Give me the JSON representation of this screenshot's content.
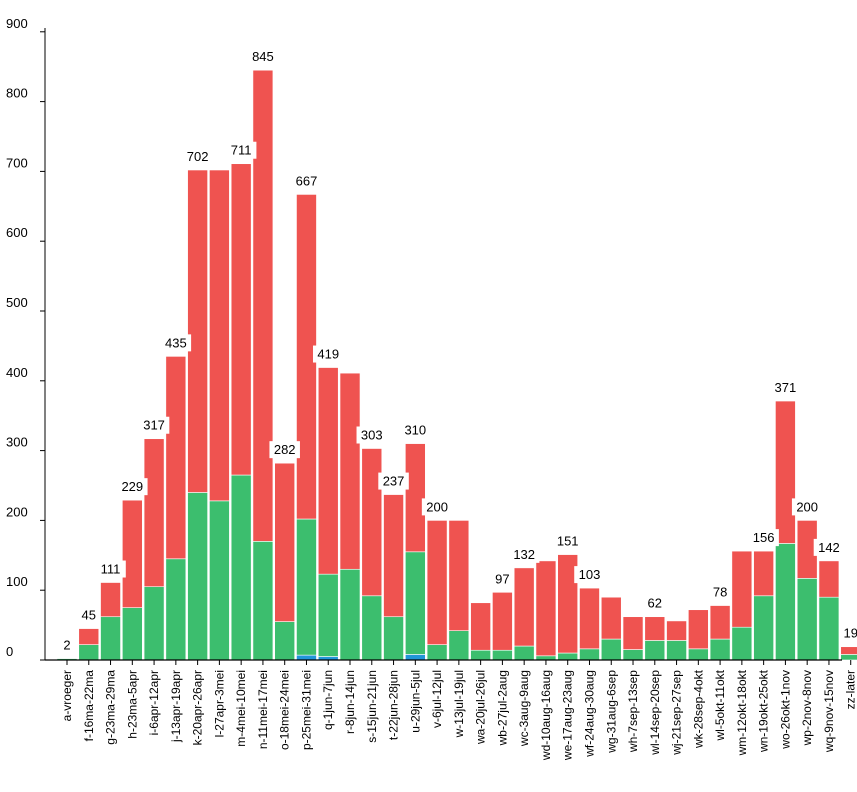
{
  "chart_data": {
    "type": "bar",
    "stacked": true,
    "title": "",
    "xlabel": "",
    "ylabel": "",
    "ylim": [
      0,
      920
    ],
    "yticks": [
      0,
      100,
      200,
      300,
      400,
      500,
      600,
      700,
      800,
      900
    ],
    "grid": false,
    "legend": "none",
    "colors": {
      "green": "#3cbe6e",
      "red": "#ef5350",
      "blue": "#2196d8",
      "axis": "#000000"
    },
    "categories": [
      "a-vroeger",
      "f-16ma-22ma",
      "g-23ma-29ma",
      "h-23ma-5apr",
      "i-6apr-12apr",
      "j-13apr-19apr",
      "k-20apr-26apr",
      "l-27apr-3mei",
      "m-4mei-10mei",
      "n-11mei-17mei",
      "o-18mei-24mei",
      "p-25mei-31mei",
      "q-1jun-7jun",
      "r-8jun-14jun",
      "s-15jun-21jun",
      "t-22jun-28jun",
      "u-29jun-5jul",
      "v-6jul-12jul",
      "w-13jul-19jul",
      "wa-20jul-26jul",
      "wb-27jul-2aug",
      "wc-3aug-9aug",
      "wd-10aug-16aug",
      "we-17aug-23aug",
      "wf-24aug-30aug",
      "wg-31aug-6sep",
      "wh-7sep-13sep",
      "wl-14sep-20sep",
      "wj-21sep-27sep",
      "wk-28sep-4okt",
      "wl-5okt-11okt",
      "wm-12okt-18okt",
      "wn-19okt-25okt",
      "wo-26okt-1nov",
      "wp-2nov-8nov",
      "wq-9nov-15nov",
      "zz-later"
    ],
    "series": [
      {
        "color": "blue",
        "values": [
          0,
          0,
          0,
          0,
          0,
          0,
          0,
          0,
          0,
          0,
          0,
          7,
          5,
          0,
          0,
          0,
          8,
          0,
          0,
          0,
          0,
          0,
          0,
          0,
          0,
          0,
          0,
          0,
          0,
          0,
          0,
          0,
          0,
          0,
          0,
          0,
          0
        ]
      },
      {
        "color": "green",
        "values": [
          2,
          22,
          62,
          75,
          105,
          145,
          240,
          228,
          265,
          170,
          55,
          195,
          118,
          130,
          92,
          62,
          147,
          22,
          42,
          14,
          14,
          20,
          6,
          10,
          16,
          30,
          15,
          28,
          28,
          16,
          30,
          47,
          92,
          167,
          117,
          90,
          8
        ]
      },
      {
        "color": "red",
        "values": [
          0,
          23,
          49,
          154,
          212,
          290,
          462,
          474,
          446,
          675,
          227,
          465,
          296,
          281,
          211,
          175,
          155,
          178,
          158,
          68,
          83,
          112,
          136,
          141,
          87,
          60,
          47,
          34,
          28,
          56,
          48,
          109,
          64,
          204,
          83,
          52,
          11
        ]
      }
    ],
    "totals": [
      2,
      45,
      111,
      229,
      317,
      435,
      702,
      702,
      711,
      845,
      282,
      667,
      419,
      411,
      303,
      237,
      310,
      200,
      200,
      82,
      97,
      132,
      142,
      151,
      103,
      90,
      62,
      62,
      56,
      72,
      78,
      156,
      156,
      371,
      200,
      142,
      19
    ],
    "labels": [
      "2",
      "45",
      "111",
      "229",
      "317",
      "435",
      "702",
      "",
      "711",
      "845",
      "282",
      "667",
      "419",
      "",
      "303",
      "237",
      "310",
      "200",
      "",
      "",
      "97",
      "132",
      "",
      "151",
      "103",
      "",
      "",
      "62",
      "",
      "",
      "78",
      "",
      "156",
      "371",
      "200",
      "142",
      "19"
    ]
  }
}
